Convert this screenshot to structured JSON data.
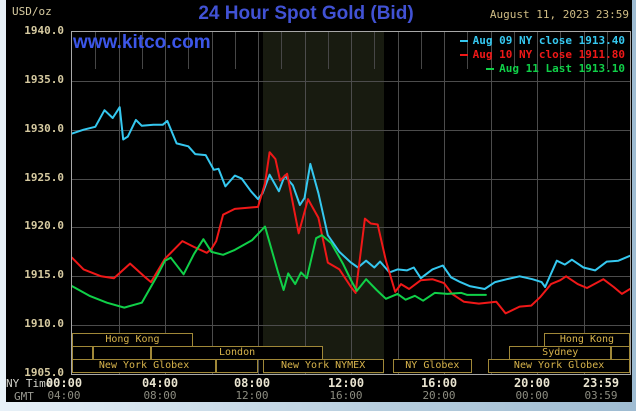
{
  "header": {
    "unit_label": "USD/oz",
    "title": "24 Hour Spot Gold (Bid)",
    "timestamp": "August 11, 2023 23:59",
    "watermark": "www.kitco.com"
  },
  "legend": [
    {
      "label": "Aug 09 NY close 1913.40",
      "color": "#35c8f0"
    },
    {
      "label": "Aug 10 NY close 1911.80",
      "color": "#f01818"
    },
    {
      "label": "Aug 11 Last 1913.10",
      "color": "#10d048"
    }
  ],
  "y_axis": {
    "labels": [
      "1940.0",
      "1935.0",
      "1930.0",
      "1925.0",
      "1920.0",
      "1915.0",
      "1910.0",
      "1905.0"
    ]
  },
  "x_axis": {
    "ny_label": "NY Time",
    "gmt_label": "GMT",
    "ny_ticks": [
      "00:00",
      "04:00",
      "08:00",
      "12:00",
      "16:00",
      "20:00",
      "23:59"
    ],
    "gmt_ticks": [
      "04:00",
      "08:00",
      "12:00",
      "16:00",
      "20:00",
      "00:00",
      "03:59"
    ]
  },
  "sessions": [
    {
      "row": 0,
      "start_h": 0.0,
      "end_h": 5.2,
      "label": "Hong Kong"
    },
    {
      "row": 0,
      "start_h": 20.3,
      "end_h": 24.0,
      "label": "Hong Kong"
    },
    {
      "row": 1,
      "start_h": 0.0,
      "end_h": 0.9,
      "label": ""
    },
    {
      "row": 1,
      "start_h": 0.9,
      "end_h": 3.4,
      "label": ""
    },
    {
      "row": 1,
      "start_h": 3.4,
      "end_h": 10.8,
      "label": "London"
    },
    {
      "row": 1,
      "start_h": 18.8,
      "end_h": 23.2,
      "label": "Sydney"
    },
    {
      "row": 1,
      "start_h": 23.2,
      "end_h": 24.0,
      "label": ""
    },
    {
      "row": 2,
      "start_h": 0.0,
      "end_h": 6.2,
      "label": "New York Globex"
    },
    {
      "row": 2,
      "start_h": 6.2,
      "end_h": 8.0,
      "label": ""
    },
    {
      "row": 2,
      "start_h": 8.2,
      "end_h": 13.4,
      "label": "New York NYMEX"
    },
    {
      "row": 2,
      "start_h": 13.8,
      "end_h": 17.2,
      "label": "NY Globex"
    },
    {
      "row": 2,
      "start_h": 17.9,
      "end_h": 24.0,
      "label": "New York Globex"
    }
  ],
  "chart_data": {
    "type": "line",
    "title": "24 Hour Spot Gold (Bid)",
    "xlabel": "NY Time (hours)",
    "ylabel": "USD/oz",
    "xlim": [
      0,
      24
    ],
    "ylim": [
      1905,
      1940
    ],
    "grid": "on",
    "legend_position": "top-right",
    "shaded_session": {
      "start": 8.2,
      "end": 13.4
    },
    "series": [
      {
        "name": "Aug 09 NY close",
        "close": 1913.4,
        "color": "#35c8f0",
        "points": [
          [
            0,
            1929.6
          ],
          [
            0.5,
            1930.0
          ],
          [
            1,
            1930.3
          ],
          [
            1.4,
            1932.0
          ],
          [
            1.75,
            1931.2
          ],
          [
            2.05,
            1932.3
          ],
          [
            2.2,
            1929.0
          ],
          [
            2.4,
            1929.3
          ],
          [
            2.75,
            1931.0
          ],
          [
            3,
            1930.4
          ],
          [
            3.5,
            1930.5
          ],
          [
            3.9,
            1930.5
          ],
          [
            4.1,
            1930.9
          ],
          [
            4.5,
            1928.6
          ],
          [
            5,
            1928.3
          ],
          [
            5.3,
            1927.5
          ],
          [
            5.75,
            1927.4
          ],
          [
            6.1,
            1925.9
          ],
          [
            6.3,
            1926.0
          ],
          [
            6.6,
            1924.2
          ],
          [
            7,
            1925.3
          ],
          [
            7.3,
            1925.0
          ],
          [
            7.7,
            1923.7
          ],
          [
            8,
            1922.9
          ],
          [
            8.2,
            1923.5
          ],
          [
            8.5,
            1925.4
          ],
          [
            8.9,
            1923.7
          ],
          [
            9.15,
            1925.3
          ],
          [
            9.5,
            1924.3
          ],
          [
            9.8,
            1922.3
          ],
          [
            10,
            1923.0
          ],
          [
            10.25,
            1926.5
          ],
          [
            10.6,
            1923.5
          ],
          [
            11,
            1919.2
          ],
          [
            11.5,
            1917.5
          ],
          [
            12,
            1916.4
          ],
          [
            12.3,
            1915.9
          ],
          [
            12.65,
            1916.6
          ],
          [
            13,
            1915.9
          ],
          [
            13.25,
            1916.5
          ],
          [
            13.65,
            1915.4
          ],
          [
            14,
            1915.7
          ],
          [
            14.4,
            1915.6
          ],
          [
            14.7,
            1915.9
          ],
          [
            15,
            1914.8
          ],
          [
            15.5,
            1915.7
          ],
          [
            15.95,
            1916.1
          ],
          [
            16.3,
            1914.9
          ],
          [
            16.7,
            1914.4
          ],
          [
            17.1,
            1914.0
          ],
          [
            17.75,
            1913.7
          ],
          [
            18.2,
            1914.4
          ],
          [
            18.7,
            1914.7
          ],
          [
            19.25,
            1915.0
          ],
          [
            19.8,
            1914.7
          ],
          [
            20.2,
            1914.4
          ],
          [
            20.35,
            1913.9
          ],
          [
            20.85,
            1916.6
          ],
          [
            21.2,
            1916.2
          ],
          [
            21.5,
            1916.7
          ],
          [
            22,
            1915.9
          ],
          [
            22.5,
            1915.6
          ],
          [
            23,
            1916.5
          ],
          [
            23.5,
            1916.6
          ],
          [
            24,
            1917.1
          ]
        ]
      },
      {
        "name": "Aug 10 NY close",
        "close": 1911.8,
        "color": "#f01818",
        "points": [
          [
            0,
            1916.9
          ],
          [
            0.5,
            1915.7
          ],
          [
            1.25,
            1915.0
          ],
          [
            1.8,
            1914.8
          ],
          [
            2.5,
            1916.3
          ],
          [
            3.1,
            1915.0
          ],
          [
            3.4,
            1914.4
          ],
          [
            4,
            1916.8
          ],
          [
            4.75,
            1918.6
          ],
          [
            5.25,
            1918.0
          ],
          [
            5.8,
            1917.4
          ],
          [
            6,
            1917.8
          ],
          [
            6.2,
            1918.6
          ],
          [
            6.5,
            1921.3
          ],
          [
            7,
            1921.9
          ],
          [
            7.5,
            1922.0
          ],
          [
            8,
            1922.1
          ],
          [
            8.3,
            1924.5
          ],
          [
            8.5,
            1927.7
          ],
          [
            8.75,
            1927.0
          ],
          [
            8.95,
            1924.8
          ],
          [
            9.25,
            1925.5
          ],
          [
            9.75,
            1919.4
          ],
          [
            10.15,
            1922.9
          ],
          [
            10.6,
            1921.0
          ],
          [
            11,
            1916.4
          ],
          [
            11.5,
            1915.7
          ],
          [
            12,
            1913.9
          ],
          [
            12.2,
            1913.3
          ],
          [
            12.6,
            1920.9
          ],
          [
            12.85,
            1920.4
          ],
          [
            13.15,
            1920.3
          ],
          [
            13.5,
            1916.6
          ],
          [
            13.9,
            1913.4
          ],
          [
            14.15,
            1914.2
          ],
          [
            14.5,
            1913.7
          ],
          [
            15,
            1914.6
          ],
          [
            15.5,
            1914.7
          ],
          [
            16,
            1914.3
          ],
          [
            16.35,
            1913.2
          ],
          [
            16.85,
            1912.4
          ],
          [
            17.5,
            1912.2
          ],
          [
            18.25,
            1912.4
          ],
          [
            18.65,
            1911.2
          ],
          [
            19.25,
            1911.9
          ],
          [
            19.75,
            1912.0
          ],
          [
            20.15,
            1912.9
          ],
          [
            20.6,
            1914.2
          ],
          [
            21,
            1914.6
          ],
          [
            21.25,
            1915.0
          ],
          [
            21.75,
            1914.2
          ],
          [
            22.15,
            1913.8
          ],
          [
            22.85,
            1914.7
          ],
          [
            23.3,
            1913.9
          ],
          [
            23.65,
            1913.2
          ],
          [
            24,
            1913.7
          ]
        ]
      },
      {
        "name": "Aug 11 Last",
        "close": 1913.1,
        "color": "#10d048",
        "points": [
          [
            0,
            1914.0
          ],
          [
            0.75,
            1913.0
          ],
          [
            1.5,
            1912.3
          ],
          [
            2.25,
            1911.8
          ],
          [
            3,
            1912.3
          ],
          [
            3.65,
            1915.0
          ],
          [
            4,
            1916.6
          ],
          [
            4.25,
            1916.9
          ],
          [
            4.8,
            1915.2
          ],
          [
            5.25,
            1917.3
          ],
          [
            5.65,
            1918.8
          ],
          [
            6,
            1917.5
          ],
          [
            6.5,
            1917.2
          ],
          [
            7,
            1917.7
          ],
          [
            7.75,
            1918.7
          ],
          [
            8.3,
            1920.1
          ],
          [
            8.85,
            1915.5
          ],
          [
            9.1,
            1913.6
          ],
          [
            9.3,
            1915.3
          ],
          [
            9.6,
            1914.2
          ],
          [
            9.85,
            1915.4
          ],
          [
            10.1,
            1914.8
          ],
          [
            10.5,
            1918.9
          ],
          [
            10.75,
            1919.2
          ],
          [
            11.15,
            1918.4
          ],
          [
            11.65,
            1916.3
          ],
          [
            12,
            1914.6
          ],
          [
            12.25,
            1913.5
          ],
          [
            12.65,
            1914.7
          ],
          [
            13.1,
            1913.6
          ],
          [
            13.5,
            1912.7
          ],
          [
            14,
            1913.2
          ],
          [
            14.35,
            1912.6
          ],
          [
            14.75,
            1913.0
          ],
          [
            15.1,
            1912.5
          ],
          [
            15.6,
            1913.3
          ],
          [
            16.15,
            1913.2
          ],
          [
            16.75,
            1913.3
          ],
          [
            17,
            1913.1
          ],
          [
            17.8,
            1913.1
          ]
        ]
      }
    ]
  }
}
